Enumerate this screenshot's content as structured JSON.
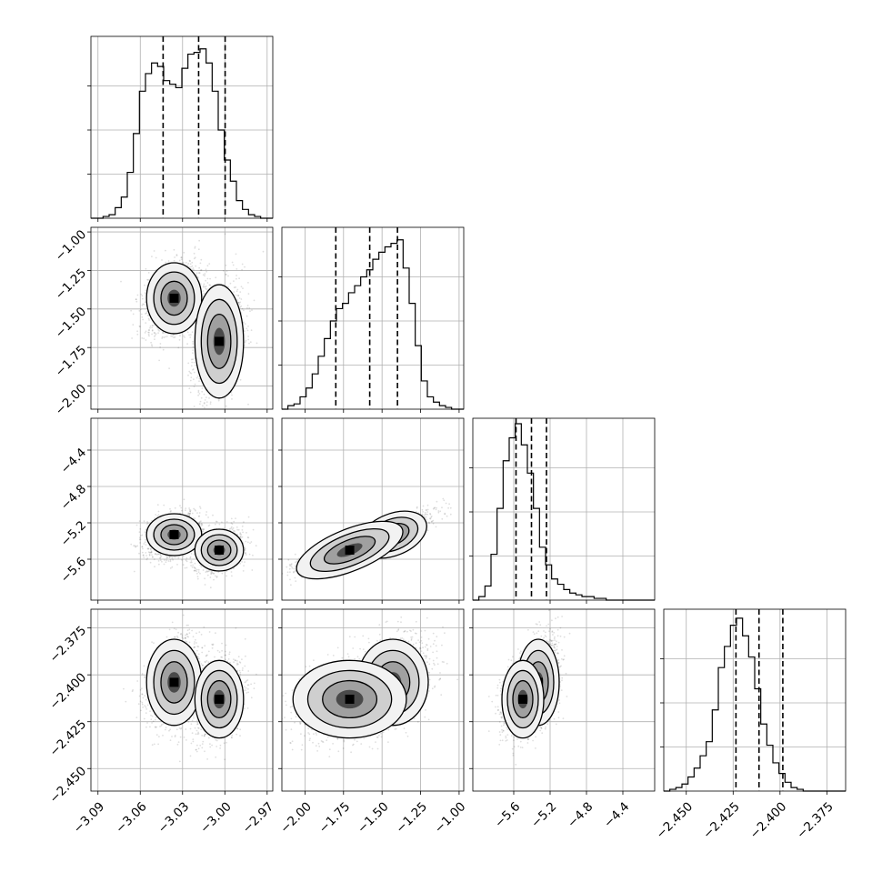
{
  "chart_data": {
    "type": "corner",
    "parameters": [
      {
        "range": [
          -3.095,
          -2.966
        ],
        "ticks": [
          -3.09,
          -3.06,
          -3.03,
          -3.0,
          -2.97
        ],
        "tick_labels": [
          "−3.09",
          "−3.06",
          "−3.03",
          "−3.00",
          "−2.97"
        ],
        "quantiles": [
          -3.0438,
          -3.0186,
          -2.9998
        ],
        "mode_centers": [
          -3.036,
          -3.004
        ],
        "mode_sd": [
          0.0085,
          0.0075
        ],
        "hist": [
          0.0,
          0.0,
          0.01,
          0.02,
          0.06,
          0.12,
          0.26,
          0.48,
          0.72,
          0.82,
          0.88,
          0.86,
          0.78,
          0.76,
          0.74,
          0.85,
          0.93,
          0.94,
          0.96,
          0.88,
          0.72,
          0.5,
          0.33,
          0.21,
          0.1,
          0.05,
          0.02,
          0.01,
          0.0,
          0.0
        ]
      },
      {
        "range": [
          -2.15,
          -0.97
        ],
        "ticks": [
          -2.0,
          -1.75,
          -1.5,
          -1.25,
          -1.0
        ],
        "tick_labels": [
          "−2.00",
          "−1.75",
          "−1.50",
          "−1.25",
          "−1.00"
        ],
        "quantiles": [
          -1.8,
          -1.58,
          -1.4
        ],
        "mode_centers": [
          -1.43,
          -1.71
        ],
        "mode_sd": [
          0.1,
          0.16
        ],
        "hist": [
          0.0,
          0.02,
          0.03,
          0.07,
          0.12,
          0.2,
          0.3,
          0.4,
          0.5,
          0.57,
          0.6,
          0.66,
          0.7,
          0.75,
          0.79,
          0.85,
          0.89,
          0.92,
          0.94,
          0.96,
          0.8,
          0.6,
          0.36,
          0.16,
          0.07,
          0.04,
          0.02,
          0.01,
          0.0,
          0.0
        ]
      },
      {
        "range": [
          -6.05,
          -4.05
        ],
        "ticks": [
          -5.6,
          -5.2,
          -4.8,
          -4.4
        ],
        "tick_labels": [
          "−5.6",
          "−5.2",
          "−4.8",
          "−4.4"
        ],
        "quantiles": [
          -5.575,
          -5.405,
          -5.24
        ],
        "mode_centers": [
          -5.33,
          -5.5
        ],
        "mode_sd": [
          0.1,
          0.1
        ],
        "hist": [
          0.0,
          0.02,
          0.08,
          0.26,
          0.52,
          0.79,
          0.92,
          1.0,
          0.88,
          0.72,
          0.52,
          0.3,
          0.2,
          0.12,
          0.09,
          0.06,
          0.04,
          0.03,
          0.02,
          0.02,
          0.01,
          0.01,
          0.0,
          0.0,
          0.0,
          0.0,
          0.0,
          0.0,
          0.0,
          0.0
        ]
      },
      {
        "range": [
          -2.462,
          -2.365
        ],
        "ticks": [
          -2.45,
          -2.425,
          -2.4,
          -2.375
        ],
        "tick_labels": [
          "−2.450",
          "−2.425",
          "−2.400",
          "−2.375"
        ],
        "quantiles": [
          -2.4235,
          -2.4112,
          -2.3985
        ],
        "mode_centers": [
          -2.404,
          -2.413
        ],
        "mode_sd": [
          0.01,
          0.009
        ],
        "hist": [
          0.0,
          0.01,
          0.02,
          0.04,
          0.08,
          0.13,
          0.2,
          0.28,
          0.46,
          0.7,
          0.82,
          0.94,
          0.98,
          0.88,
          0.76,
          0.58,
          0.38,
          0.26,
          0.16,
          0.1,
          0.05,
          0.02,
          0.01,
          0.0,
          0.0,
          0.0,
          0.0,
          0.0,
          0.0,
          0.0
        ]
      }
    ],
    "grid": true,
    "series": []
  }
}
